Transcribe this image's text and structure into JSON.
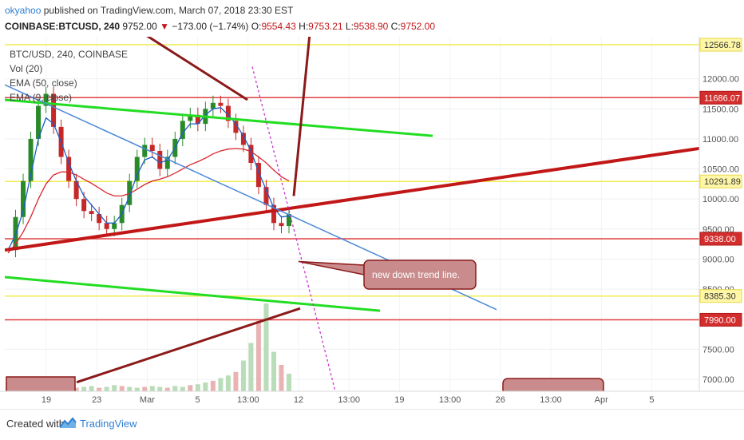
{
  "header": {
    "user": "okyahoo",
    "published_text": "published on TradingView.com, March 07, 2018 23:30 EST",
    "symbol": "COINBASE:BTCUSD, 240",
    "price": "9752.00",
    "change_arrow": "▼",
    "change": "−173.00 (−1.74%)",
    "o_label": "O:",
    "o": "9554.43",
    "h_label": "H:",
    "h": "9753.21",
    "l_label": "L:",
    "l": "9538.90",
    "c_label": "C:",
    "c": "9752.00"
  },
  "legend": {
    "title": "BTC/USD, 240, COINBASE",
    "vol": "Vol (20)",
    "ema50": "EMA (50, close)",
    "ema9": "EMA (9, close)"
  },
  "annotation": {
    "text": "new down trend line."
  },
  "footer": {
    "created_with": "Created with",
    "brand": "TradingView"
  },
  "colors": {
    "up_candle": "#2a8a2a",
    "down_candle": "#c62828",
    "ema_fast": "#1a5fc4",
    "ema_slow": "#d9282f",
    "trend_red": "#c21717",
    "trend_green": "#22dd22",
    "trend_blue": "#4a88d8",
    "hline_yellow": "#f2ec52",
    "hline_red": "#e04040",
    "callout_fill": "#c98b8b",
    "callout_stroke": "#8b1a1a",
    "brand_blue": "#2f7fd1"
  },
  "chart_data": {
    "type": "candlestick",
    "instrument": "COINBASE:BTCUSD",
    "timeframe": "240",
    "y_range": [
      6800,
      12700
    ],
    "y_ticks": [
      7000,
      7500,
      8000,
      8500,
      9000,
      9500,
      10000,
      10500,
      11000,
      11500,
      12000
    ],
    "y_tick_labels": [
      "7000.00",
      "7500.00",
      "8000.00",
      "8500.00",
      "9000.00",
      "9500.00",
      "10000.00",
      "10500.00",
      "11000.00",
      "11500.00",
      "12000.00"
    ],
    "x_ticks": [
      "19",
      "23",
      "Mar",
      "5",
      "13:00",
      "12",
      "13:00",
      "19",
      "13:00",
      "26",
      "13:00",
      "Apr",
      "5"
    ],
    "horizontal_levels": [
      {
        "label": "12566.78",
        "value": 12566.78,
        "color": "yellow"
      },
      {
        "label": "11686.07",
        "value": 11686.07,
        "color": "red"
      },
      {
        "label": "10291.89",
        "value": 10291.89,
        "color": "yellow"
      },
      {
        "label": "9338.00",
        "value": 9338.0,
        "color": "red"
      },
      {
        "label": "8385.30",
        "value": 8385.3,
        "color": "yellow"
      },
      {
        "label": "7990.00",
        "value": 7990.0,
        "color": "red"
      }
    ],
    "price_path": [
      9150,
      9700,
      10300,
      11000,
      11550,
      11750,
      11200,
      10700,
      10300,
      10000,
      9800,
      9750,
      9600,
      9500,
      9600,
      9900,
      10300,
      10700,
      10900,
      10800,
      10500,
      10700,
      11000,
      11300,
      11400,
      11250,
      11500,
      11600,
      11550,
      11300,
      11100,
      10900,
      10600,
      10200,
      9900,
      9600,
      9550,
      9750
    ],
    "volume_profile": [
      0.1,
      0.08,
      0.12,
      0.06,
      0.05,
      0.09,
      0.07,
      0.05,
      0.06,
      0.04,
      0.05,
      0.06,
      0.04,
      0.05,
      0.07,
      0.06,
      0.05,
      0.04,
      0.05,
      0.06,
      0.05,
      0.04,
      0.06,
      0.05,
      0.07,
      0.08,
      0.1,
      0.12,
      0.15,
      0.18,
      0.22,
      0.35,
      0.55,
      0.8,
      1.0,
      0.45,
      0.3,
      0.2
    ],
    "ema_fast": [
      9150,
      9400,
      9800,
      10400,
      11000,
      11350,
      11250,
      10950,
      10600,
      10300,
      10050,
      9900,
      9750,
      9600,
      9600,
      9750,
      10050,
      10400,
      10650,
      10700,
      10600,
      10650,
      10850,
      11100,
      11250,
      11250,
      11400,
      11500,
      11520,
      11400,
      11250,
      11050,
      10800,
      10450,
      10150,
      9850,
      9700,
      9720
    ],
    "ema_slow": [
      9100,
      9250,
      9450,
      9700,
      10000,
      10250,
      10400,
      10450,
      10450,
      10400,
      10330,
      10260,
      10180,
      10100,
      10050,
      10050,
      10090,
      10160,
      10240,
      10300,
      10330,
      10370,
      10430,
      10500,
      10570,
      10620,
      10680,
      10750,
      10800,
      10830,
      10840,
      10830,
      10790,
      10700,
      10600,
      10480,
      10370,
      10300
    ]
  }
}
